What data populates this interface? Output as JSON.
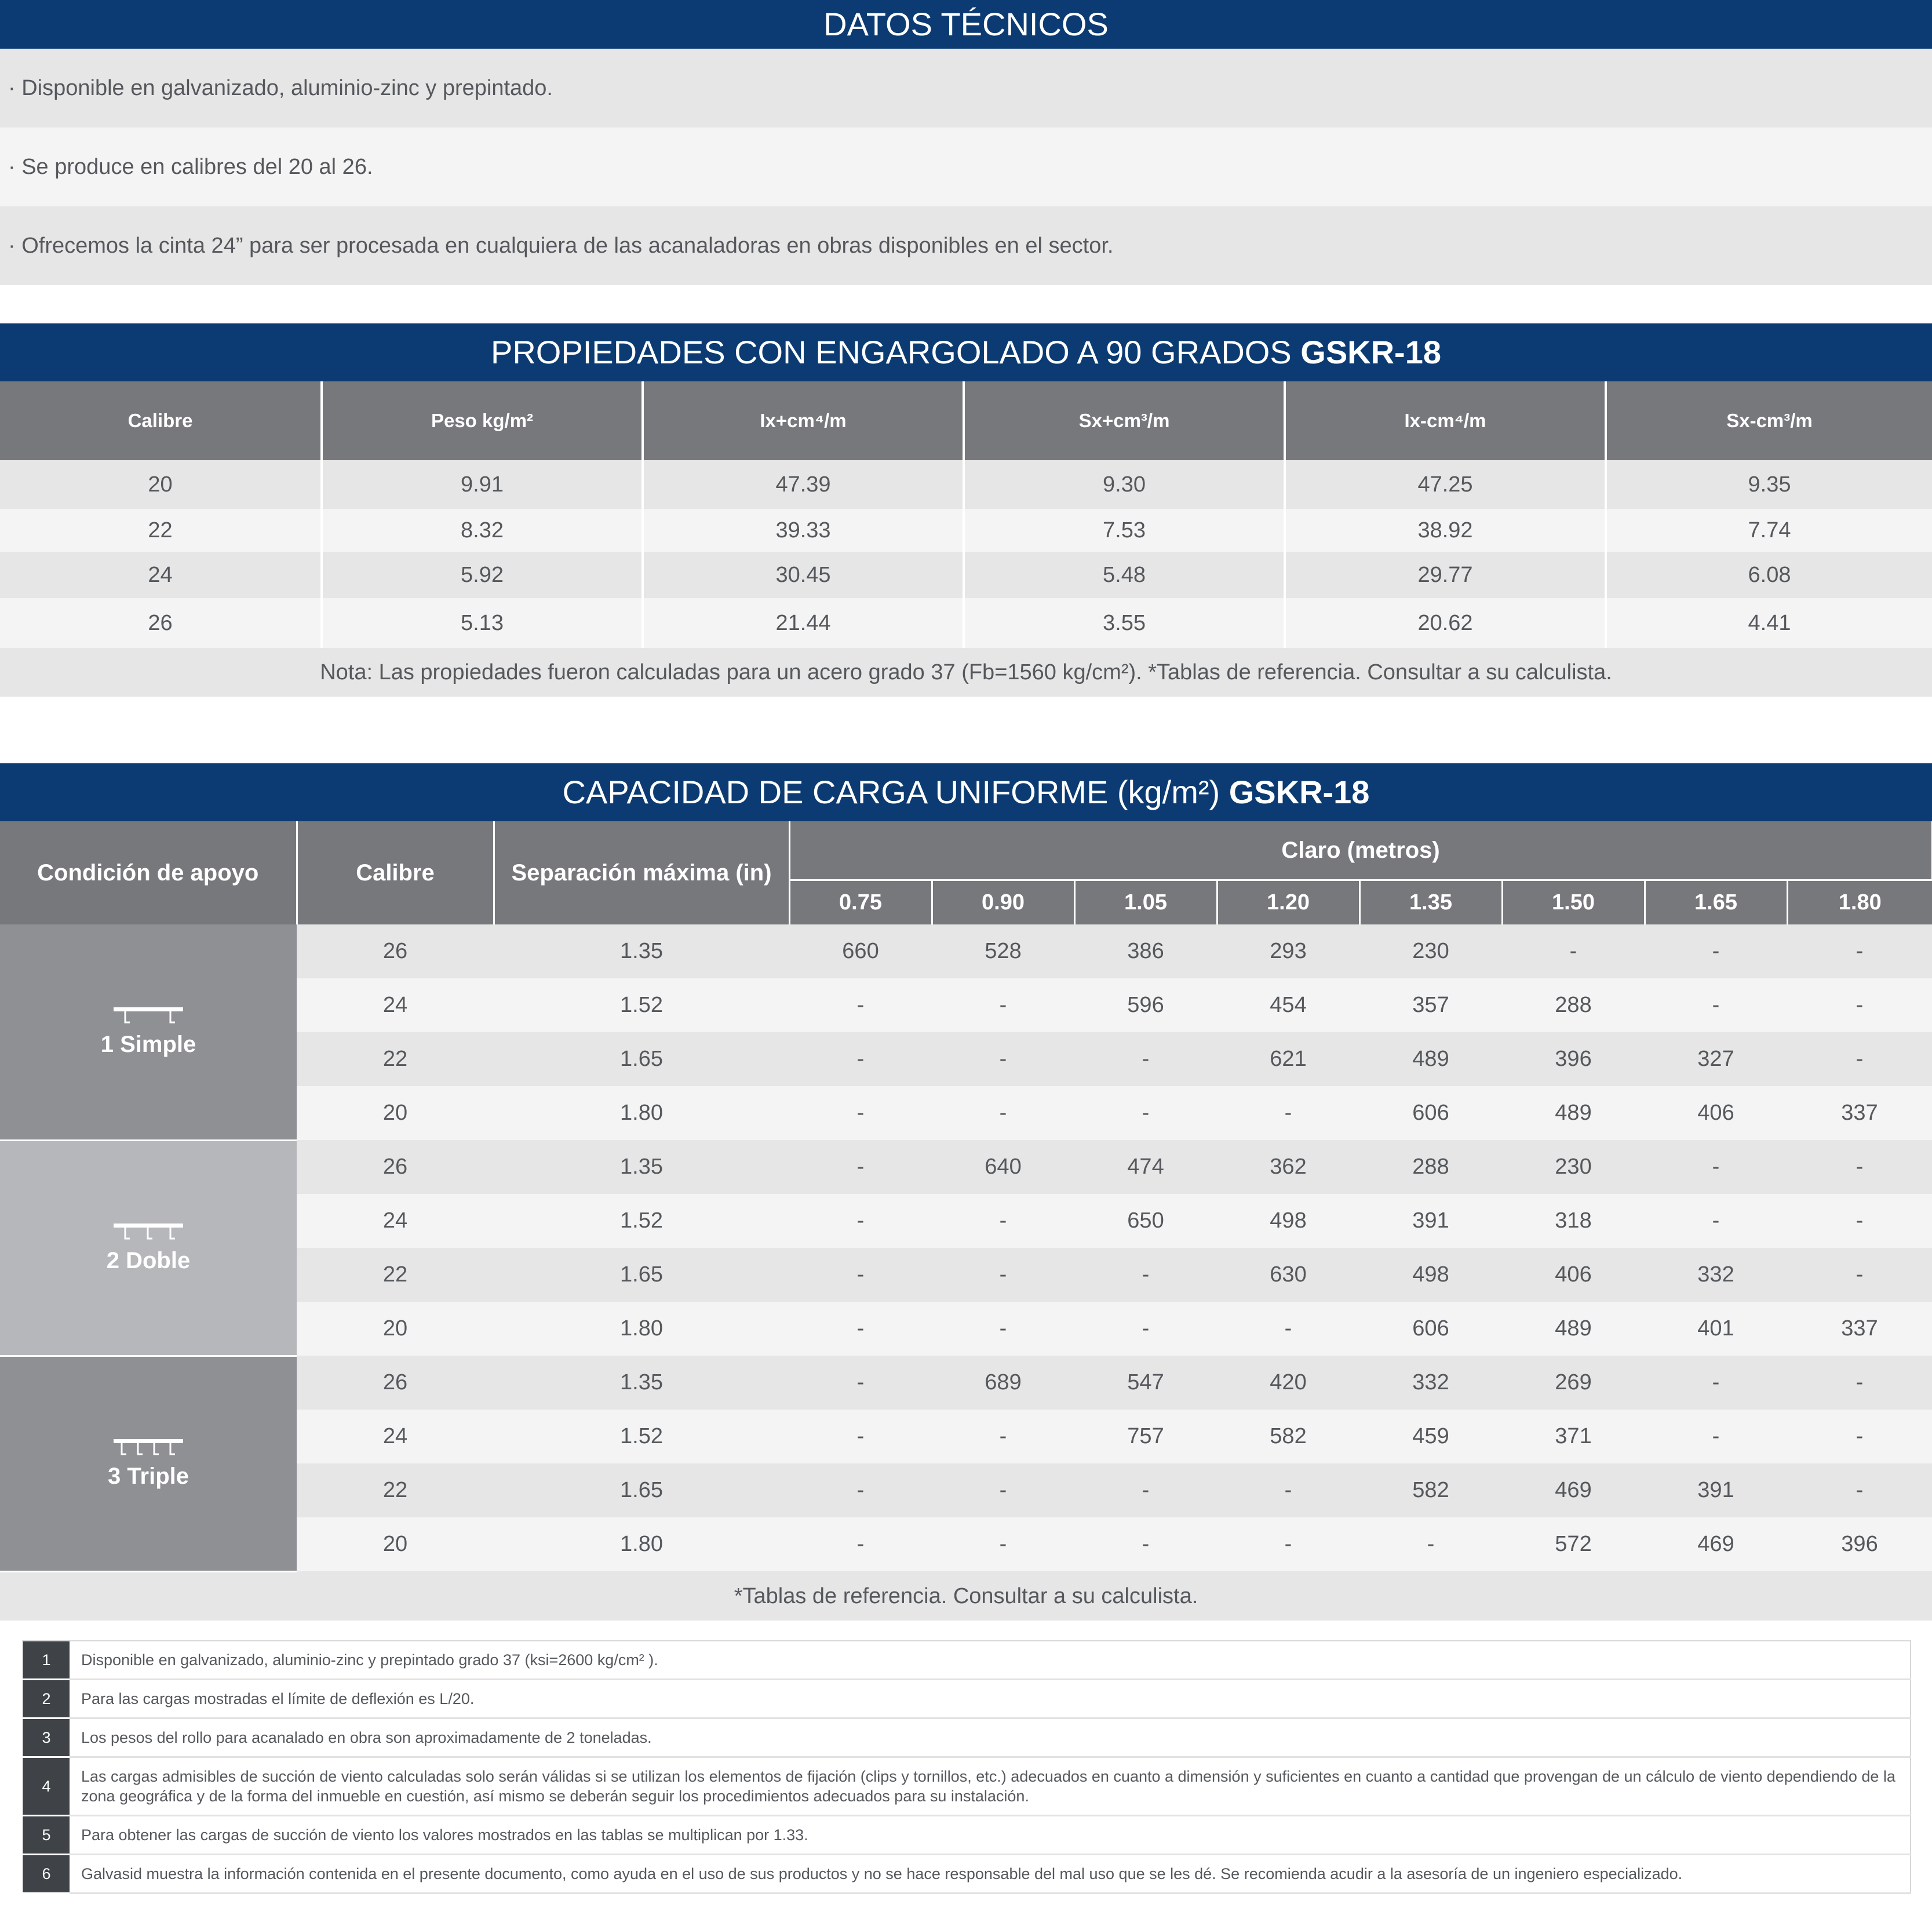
{
  "datos": {
    "title": "DATOS TÉCNICOS",
    "items": [
      "· Disponible en galvanizado, aluminio-zinc y prepintado.",
      "· Se produce en calibres del 20 al 26.",
      "·  Ofrecemos la cinta 24” para ser procesada en cualquiera de las acanaladoras en obras disponibles en el sector."
    ]
  },
  "props": {
    "title_pre": "PROPIEDADES CON ENGARGOLADO A 90 GRADOS ",
    "title_bold": "GSKR-18",
    "headers": [
      "Calibre",
      "Peso kg/m²",
      "Ix+cm⁴/m",
      "Sx+cm³/m",
      "Ix-cm⁴/m",
      "Sx-cm³/m"
    ],
    "rows": [
      [
        "20",
        "9.91",
        "47.39",
        "9.30",
        "47.25",
        "9.35"
      ],
      [
        "22",
        "8.32",
        "39.33",
        "7.53",
        "38.92",
        "7.74"
      ],
      [
        "24",
        "5.92",
        "30.45",
        "5.48",
        "29.77",
        "6.08"
      ],
      [
        "26",
        "5.13",
        "21.44",
        "3.55",
        "20.62",
        "4.41"
      ]
    ],
    "note": "Nota: Las propiedades fueron calculadas para un acero grado 37 (Fb=1560 kg/cm²). *Tablas de referencia. Consultar a su calculista."
  },
  "carga": {
    "title_pre": "CAPACIDAD DE CARGA UNIFORME (kg/m²) ",
    "title_bold": "GSKR-18",
    "h_condicion": "Condición de apoyo",
    "h_calibre": "Calibre",
    "h_separacion": "Separación máxima (in)",
    "h_claro": "Claro (metros)",
    "spans": [
      "0.75",
      "0.90",
      "1.05",
      "1.20",
      "1.35",
      "1.50",
      "1.65",
      "1.80"
    ],
    "groups": [
      {
        "label": "1 Simple",
        "icon": "simple-support-icon",
        "rows": [
          [
            "26",
            "1.35",
            "660",
            "528",
            "386",
            "293",
            "230",
            "-",
            "-",
            "-"
          ],
          [
            "24",
            "1.52",
            "-",
            "-",
            "596",
            "454",
            "357",
            "288",
            "-",
            "-"
          ],
          [
            "22",
            "1.65",
            "-",
            "-",
            "-",
            "621",
            "489",
            "396",
            "327",
            "-"
          ],
          [
            "20",
            "1.80",
            "-",
            "-",
            "-",
            "-",
            "606",
            "489",
            "406",
            "337"
          ]
        ]
      },
      {
        "label": "2 Doble",
        "icon": "double-support-icon",
        "rows": [
          [
            "26",
            "1.35",
            "-",
            "640",
            "474",
            "362",
            "288",
            "230",
            "-",
            "-"
          ],
          [
            "24",
            "1.52",
            "-",
            "-",
            "650",
            "498",
            "391",
            "318",
            "-",
            "-"
          ],
          [
            "22",
            "1.65",
            "-",
            "-",
            "-",
            "630",
            "498",
            "406",
            "332",
            "-"
          ],
          [
            "20",
            "1.80",
            "-",
            "-",
            "-",
            "-",
            "606",
            "489",
            "401",
            "337"
          ]
        ]
      },
      {
        "label": "3 Triple",
        "icon": "triple-support-icon",
        "rows": [
          [
            "26",
            "1.35",
            "-",
            "689",
            "547",
            "420",
            "332",
            "269",
            "-",
            "-"
          ],
          [
            "24",
            "1.52",
            "-",
            "-",
            "757",
            "582",
            "459",
            "371",
            "-",
            "-"
          ],
          [
            "22",
            "1.65",
            "-",
            "-",
            "-",
            "-",
            "582",
            "469",
            "391",
            "-"
          ],
          [
            "20",
            "1.80",
            "-",
            "-",
            "-",
            "-",
            "-",
            "572",
            "469",
            "396"
          ]
        ]
      }
    ],
    "footnote": "*Tablas de referencia. Consultar a su calculista."
  },
  "notes": [
    {
      "num": "1",
      "text": "Disponible en galvanizado, aluminio-zinc y prepintado grado 37 (ksi=2600 kg/cm² )."
    },
    {
      "num": "2",
      "text": "Para las cargas mostradas el límite de deflexión es L/20."
    },
    {
      "num": "3",
      "text": "Los pesos del rollo para acanalado en obra son aproximadamente de 2 toneladas."
    },
    {
      "num": "4",
      "text": "Las cargas admisibles de succión de viento calculadas solo serán válidas si se utilizan los elementos de fijación (clips y tornillos, etc.) adecuados en cuanto a dimensión y suficientes en cuanto a cantidad que provengan de un cálculo de viento dependiendo de la zona geográfica y de la forma del inmueble en cuestión, así mismo se deberán seguir los procedimientos adecuados para su instalación."
    },
    {
      "num": "5",
      "text": "Para obtener las cargas de succión de viento los valores mostrados en las tablas se multiplican por 1.33."
    },
    {
      "num": "6",
      "text": "Galvasid muestra la información contenida en el presente documento, como ayuda en el uso de sus productos y no se hace responsable del mal uso que se les dé. Se recomienda acudir a la asesoría de un ingeniero especializado."
    }
  ]
}
